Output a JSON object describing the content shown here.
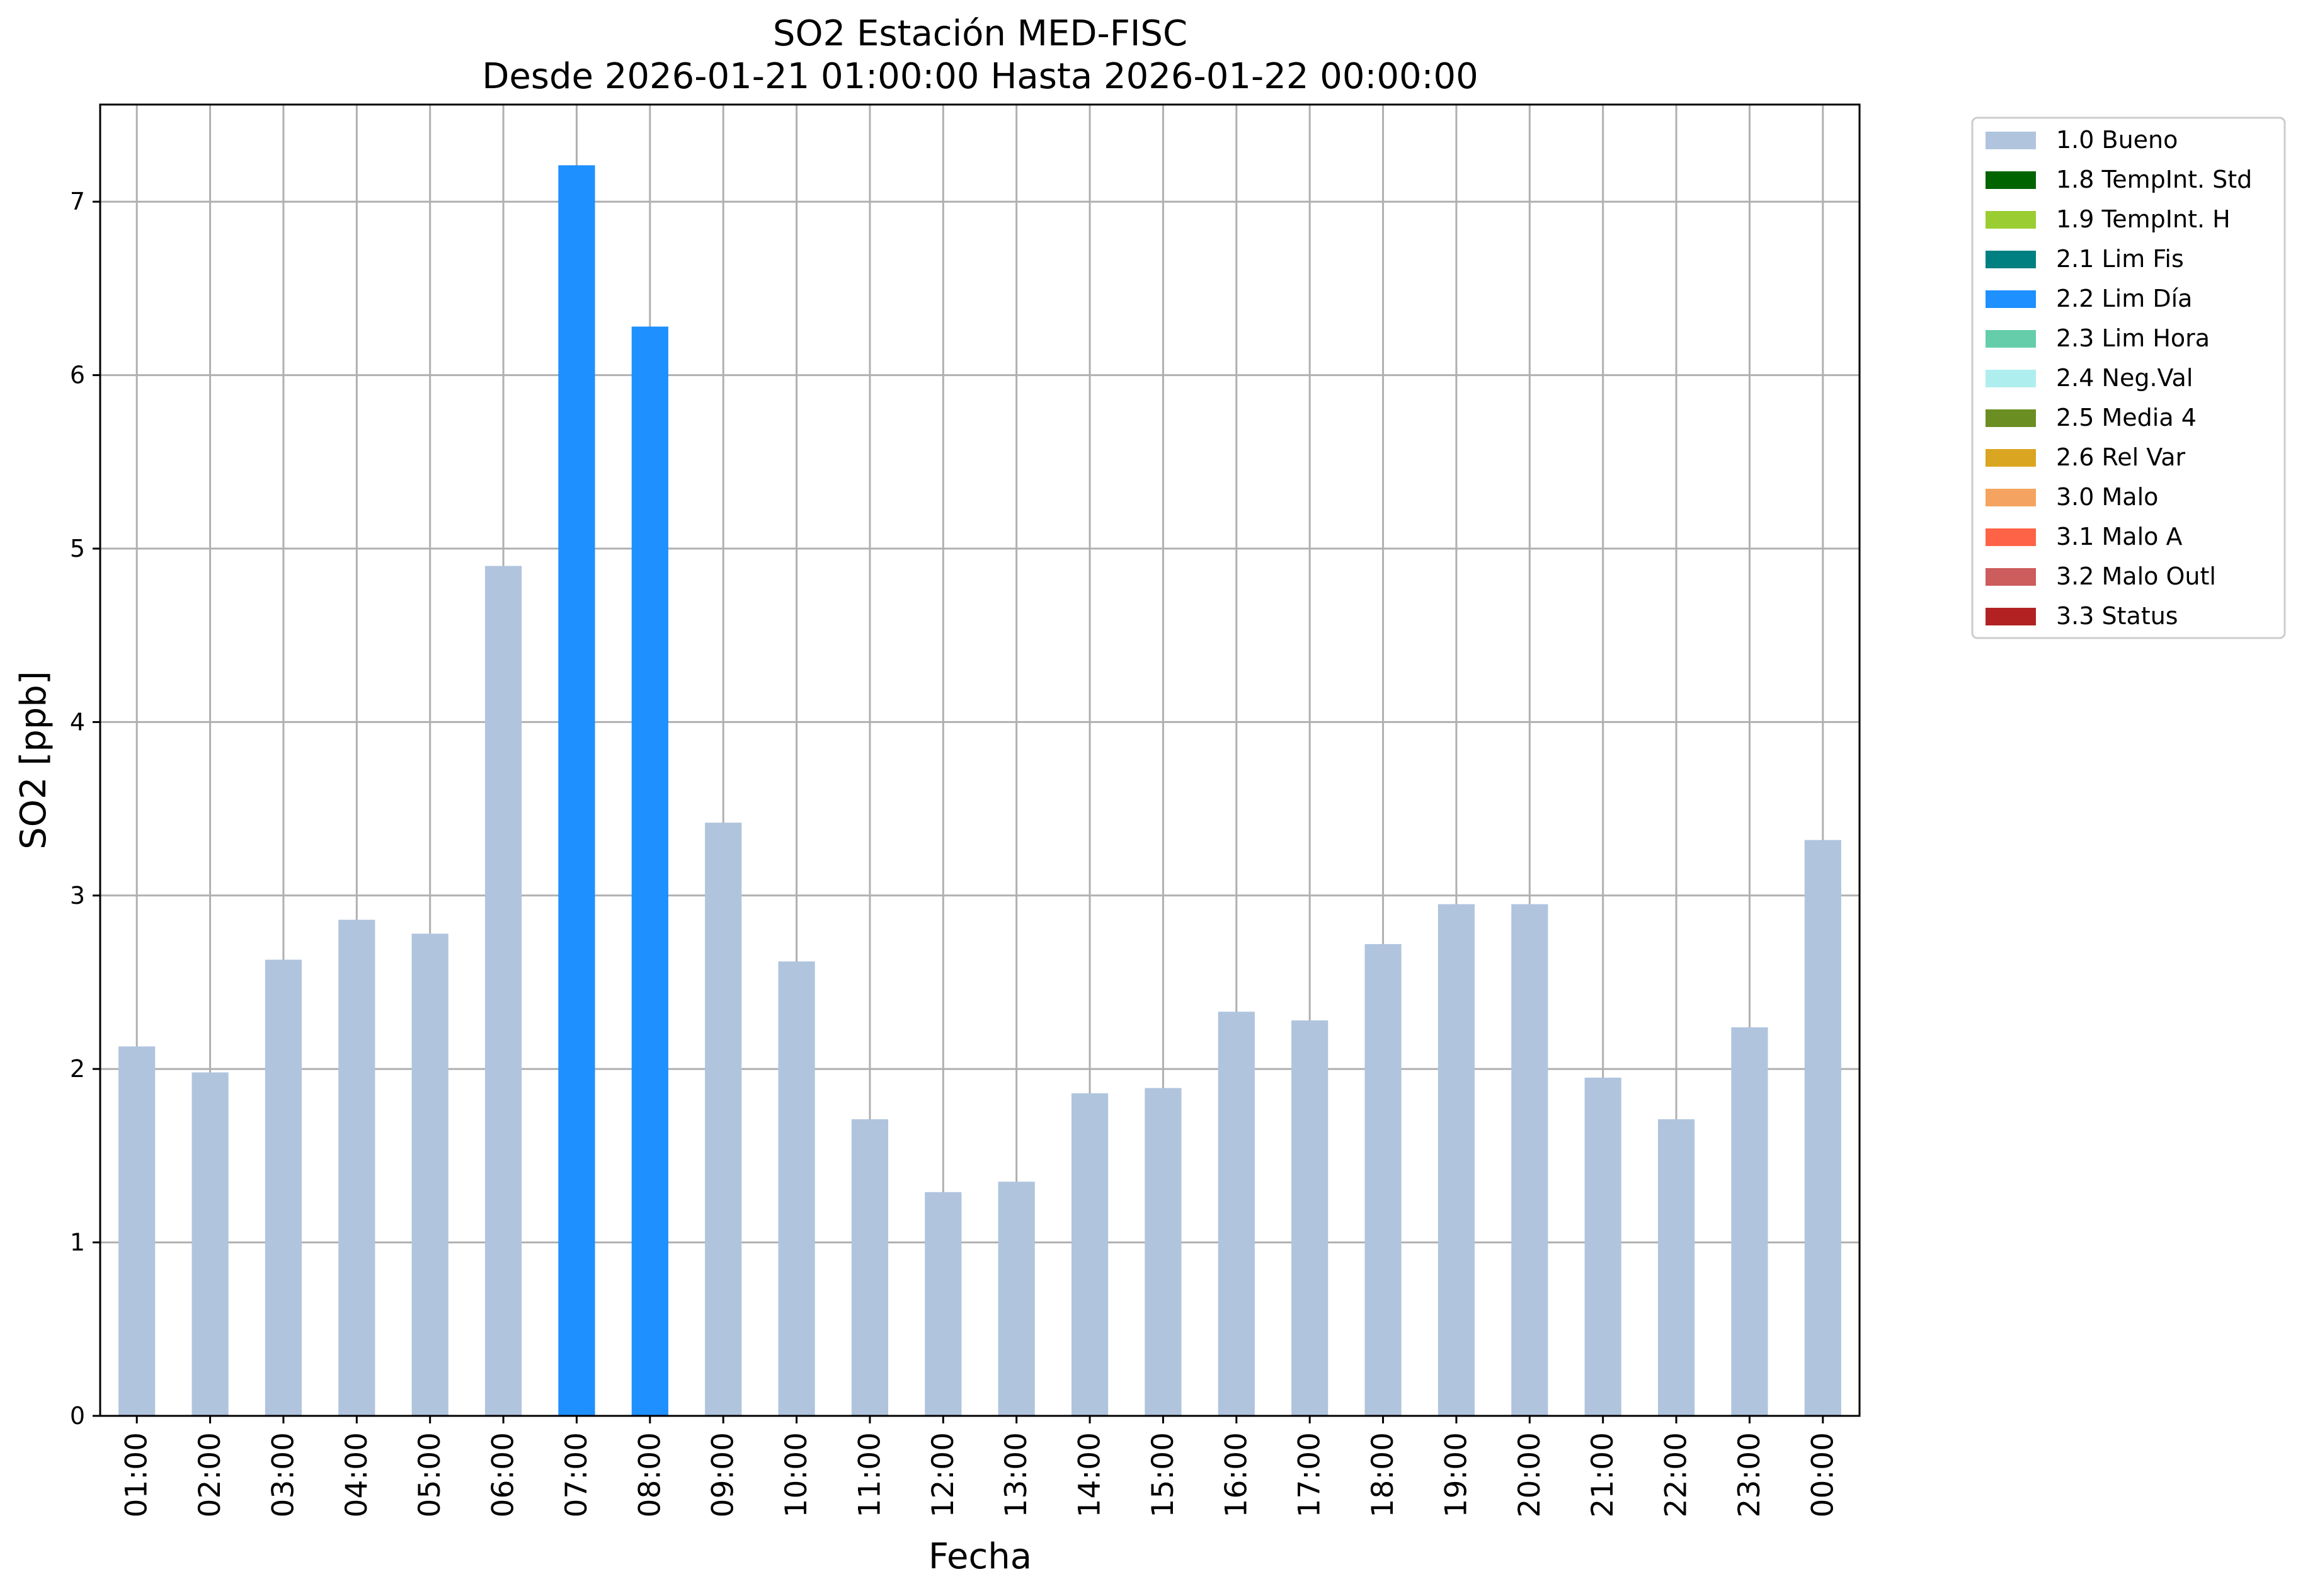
{
  "chart_data": {
    "type": "bar",
    "title": "SO2 Estación MED-FISC",
    "subtitle": "Desde 2026-01-21 01:00:00 Hasta 2026-01-22 00:00:00",
    "xlabel": "Fecha",
    "ylabel": "SO2 [ppb]",
    "ylim": [
      0,
      7.56
    ],
    "yticks": [
      "0",
      "1",
      "2",
      "3",
      "4",
      "5",
      "6",
      "7"
    ],
    "grid": true,
    "legend_position": "outside-right-top",
    "categories": [
      "01:00",
      "02:00",
      "03:00",
      "04:00",
      "05:00",
      "06:00",
      "07:00",
      "08:00",
      "09:00",
      "10:00",
      "11:00",
      "12:00",
      "13:00",
      "14:00",
      "15:00",
      "16:00",
      "17:00",
      "18:00",
      "19:00",
      "20:00",
      "21:00",
      "22:00",
      "23:00",
      "00:00"
    ],
    "values": [
      2.13,
      1.98,
      2.63,
      2.86,
      2.78,
      4.9,
      7.21,
      6.28,
      3.42,
      2.62,
      1.71,
      1.29,
      1.35,
      1.86,
      1.89,
      2.33,
      2.28,
      2.72,
      2.95,
      2.95,
      1.95,
      1.71,
      2.24,
      3.32
    ],
    "flags": [
      "1.0 Bueno",
      "1.0 Bueno",
      "1.0 Bueno",
      "1.0 Bueno",
      "1.0 Bueno",
      "1.0 Bueno",
      "2.2 Lim Día",
      "2.2 Lim Día",
      "1.0 Bueno",
      "1.0 Bueno",
      "1.0 Bueno",
      "1.0 Bueno",
      "1.0 Bueno",
      "1.0 Bueno",
      "1.0 Bueno",
      "1.0 Bueno",
      "1.0 Bueno",
      "1.0 Bueno",
      "1.0 Bueno",
      "1.0 Bueno",
      "1.0 Bueno",
      "1.0 Bueno",
      "1.0 Bueno",
      "1.0 Bueno"
    ],
    "legend": [
      {
        "label": "1.0 Bueno",
        "color": "#b0c4de"
      },
      {
        "label": "1.8 TempInt. Std",
        "color": "#006400"
      },
      {
        "label": "1.9 TempInt. H",
        "color": "#9acd32"
      },
      {
        "label": "2.1 Lim Fis",
        "color": "#008080"
      },
      {
        "label": "2.2 Lim Día",
        "color": "#1e90ff"
      },
      {
        "label": "2.3 Lim Hora",
        "color": "#66cdaa"
      },
      {
        "label": "2.4 Neg.Val",
        "color": "#afeeee"
      },
      {
        "label": "2.5 Media 4",
        "color": "#6b8e23"
      },
      {
        "label": "2.6 Rel Var",
        "color": "#daa520"
      },
      {
        "label": "3.0 Malo",
        "color": "#f4a460"
      },
      {
        "label": "3.1 Malo A",
        "color": "#ff6347"
      },
      {
        "label": "3.2 Malo Outl",
        "color": "#cd5c5c"
      },
      {
        "label": "3.3 Status",
        "color": "#b22222"
      }
    ]
  }
}
